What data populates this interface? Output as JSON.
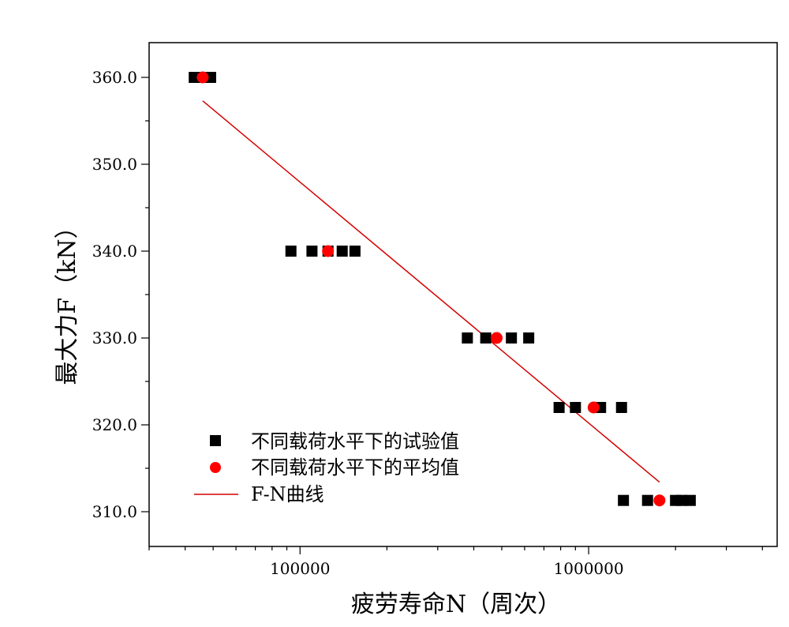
{
  "chart_data": {
    "type": "scatter",
    "title": "",
    "xlabel": "疲劳寿命N（周次）",
    "ylabel": "最大力F（kN）",
    "xscale": "log",
    "xlim": [
      30000,
      4500000
    ],
    "ylim": [
      306,
      364
    ],
    "x_ticks": [
      {
        "value": 100000,
        "label": "100000"
      },
      {
        "value": 1000000,
        "label": "1000000"
      }
    ],
    "y_ticks": [
      {
        "value": 310,
        "label": "310.0"
      },
      {
        "value": 320,
        "label": "320.0"
      },
      {
        "value": 330,
        "label": "330.0"
      },
      {
        "value": 340,
        "label": "340.0"
      },
      {
        "value": 350,
        "label": "350.0"
      },
      {
        "value": 360,
        "label": "360.0"
      }
    ],
    "grid": false,
    "legend_position": "bottom-left",
    "series": [
      {
        "name": "不同载荷水平下的试验值",
        "marker": "square",
        "color": "#000000",
        "points": [
          {
            "x": 43000,
            "y": 360
          },
          {
            "x": 46000,
            "y": 360
          },
          {
            "x": 49000,
            "y": 360
          },
          {
            "x": 93000,
            "y": 340
          },
          {
            "x": 110000,
            "y": 340
          },
          {
            "x": 125000,
            "y": 340
          },
          {
            "x": 140000,
            "y": 340
          },
          {
            "x": 155000,
            "y": 340
          },
          {
            "x": 380000,
            "y": 330
          },
          {
            "x": 440000,
            "y": 330
          },
          {
            "x": 540000,
            "y": 330
          },
          {
            "x": 620000,
            "y": 330
          },
          {
            "x": 790000,
            "y": 322
          },
          {
            "x": 900000,
            "y": 322
          },
          {
            "x": 1100000,
            "y": 322
          },
          {
            "x": 1300000,
            "y": 322
          },
          {
            "x": 1320000,
            "y": 311.3
          },
          {
            "x": 1600000,
            "y": 311.3
          },
          {
            "x": 2000000,
            "y": 311.3
          },
          {
            "x": 2100000,
            "y": 311.3
          },
          {
            "x": 2250000,
            "y": 311.3
          }
        ]
      },
      {
        "name": "不同载荷水平下的平均值",
        "marker": "circle",
        "color": "#ff0000",
        "points": [
          {
            "x": 46000,
            "y": 360
          },
          {
            "x": 125000,
            "y": 340
          },
          {
            "x": 480000,
            "y": 330
          },
          {
            "x": 1040000,
            "y": 322
          },
          {
            "x": 1760000,
            "y": 311.3
          }
        ]
      },
      {
        "name": "F-N曲线",
        "marker": "line",
        "color": "#d40000",
        "points": [
          {
            "x": 46000,
            "y": 357.3
          },
          {
            "x": 1760000,
            "y": 313.4
          }
        ]
      }
    ]
  }
}
